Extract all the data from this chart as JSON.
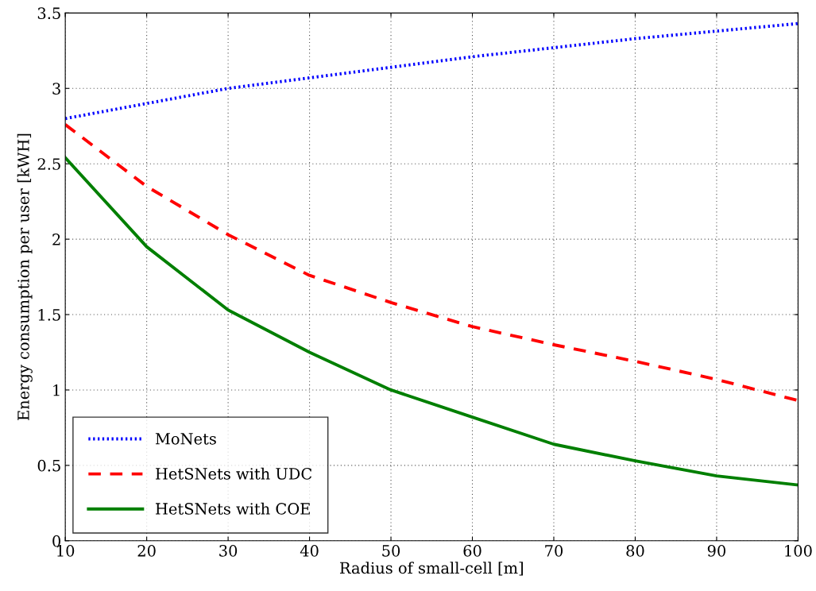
{
  "chart_data": {
    "type": "line",
    "xlabel": "Radius of small-cell [m]",
    "ylabel": "Energy consumption per user [kWH]",
    "x": [
      10,
      20,
      30,
      40,
      50,
      60,
      70,
      80,
      90,
      100
    ],
    "series": [
      {
        "name": "MoNets",
        "color": "#0000ff",
        "line_style": "dotted",
        "values": [
          2.8,
          2.9,
          3.0,
          3.07,
          3.14,
          3.21,
          3.27,
          3.33,
          3.38,
          3.43
        ]
      },
      {
        "name": "HetSNets with UDC",
        "color": "#ff0000",
        "line_style": "dashed",
        "values": [
          2.76,
          2.35,
          2.03,
          1.76,
          1.58,
          1.42,
          1.3,
          1.19,
          1.07,
          0.93
        ]
      },
      {
        "name": "HetSNets with COE",
        "color": "#007f00",
        "line_style": "solid",
        "values": [
          2.54,
          1.95,
          1.53,
          1.25,
          1.0,
          0.82,
          0.64,
          0.53,
          0.43,
          0.37
        ]
      }
    ],
    "xlim": [
      10,
      100
    ],
    "xticks": [
      10,
      20,
      30,
      40,
      50,
      60,
      70,
      80,
      90,
      100
    ],
    "ylim": [
      0,
      3.5
    ],
    "yticks": [
      0,
      0.5,
      1,
      1.5,
      2,
      2.5,
      3,
      3.5
    ],
    "grid": true,
    "legend": "bottom left",
    "marker": "none"
  }
}
